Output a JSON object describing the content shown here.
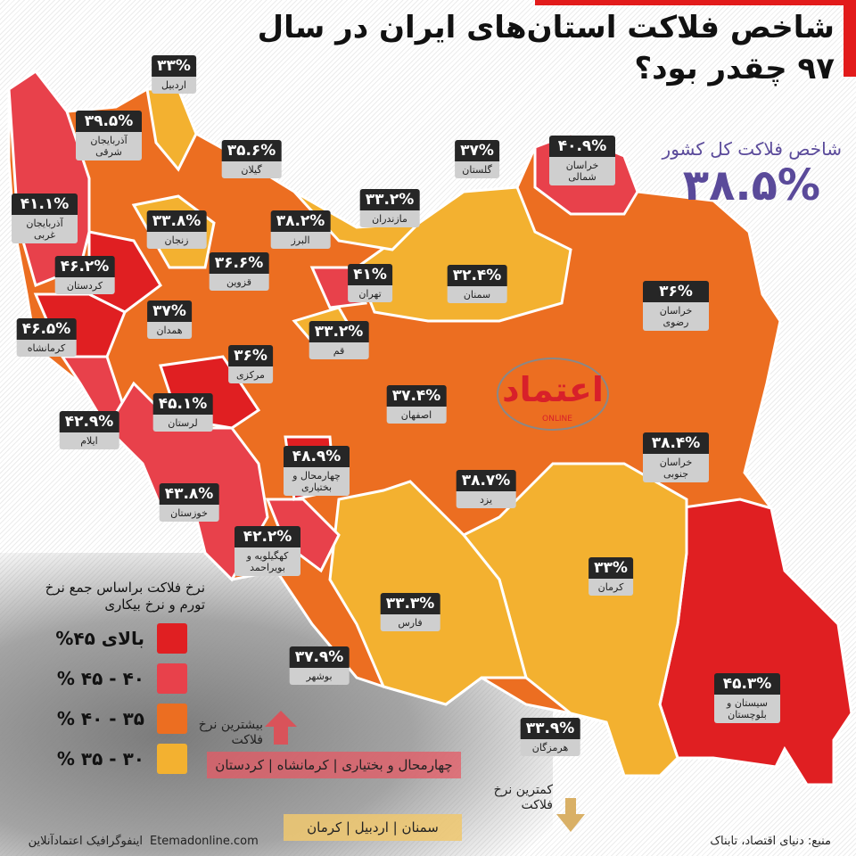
{
  "header": {
    "title": "شاخص فلاکت استان‌های ایران در سال ۹۷ چقدر بود؟"
  },
  "national": {
    "label": "شاخص فلاکت کل کشور",
    "value": "۳۸.۵%"
  },
  "colors": {
    "above45": "#e01f22",
    "40to45": "#e8414b",
    "35to40": "#ec6e21",
    "30to35": "#f3b130",
    "accent": "#5a4a9a"
  },
  "provinces": [
    {
      "name": "اردبیل",
      "value": "۳۳%",
      "cat": "30to35"
    },
    {
      "name": "آذربایجان شرقی",
      "value": "۳۹.۵%",
      "cat": "35to40"
    },
    {
      "name": "گیلان",
      "value": "۳۵.۶%",
      "cat": "35to40"
    },
    {
      "name": "گلستان",
      "value": "۳۷%",
      "cat": "35to40"
    },
    {
      "name": "خراسان شمالی",
      "value": "۴۰.۹%",
      "cat": "40to45"
    },
    {
      "name": "آذربایجان غربی",
      "value": "۴۱.۱%",
      "cat": "40to45"
    },
    {
      "name": "زنجان",
      "value": "۳۳.۸%",
      "cat": "30to35"
    },
    {
      "name": "البرز",
      "value": "۳۸.۲%",
      "cat": "35to40"
    },
    {
      "name": "مازندران",
      "value": "۳۳.۲%",
      "cat": "30to35"
    },
    {
      "name": "کردستان",
      "value": "۴۶.۲%",
      "cat": "above45"
    },
    {
      "name": "قزوین",
      "value": "۳۶.۶%",
      "cat": "35to40"
    },
    {
      "name": "تهران",
      "value": "۴۱%",
      "cat": "40to45"
    },
    {
      "name": "سمنان",
      "value": "۳۲.۴%",
      "cat": "30to35"
    },
    {
      "name": "خراسان رضوی",
      "value": "۳۶%",
      "cat": "35to40"
    },
    {
      "name": "همدان",
      "value": "۳۷%",
      "cat": "35to40"
    },
    {
      "name": "کرمانشاه",
      "value": "۴۶.۵%",
      "cat": "above45"
    },
    {
      "name": "قم",
      "value": "۳۳.۲%",
      "cat": "30to35"
    },
    {
      "name": "مرکزی",
      "value": "۳۶%",
      "cat": "35to40"
    },
    {
      "name": "اصفهان",
      "value": "۳۷.۴%",
      "cat": "35to40"
    },
    {
      "name": "لرستان",
      "value": "۴۵.۱%",
      "cat": "above45"
    },
    {
      "name": "ایلام",
      "value": "۴۲.۹%",
      "cat": "40to45"
    },
    {
      "name": "خراسان جنوبی",
      "value": "۳۸.۴%",
      "cat": "35to40"
    },
    {
      "name": "چهارمحال و بختیاری",
      "value": "۴۸.۹%",
      "cat": "above45"
    },
    {
      "name": "یزد",
      "value": "۳۸.۷%",
      "cat": "35to40"
    },
    {
      "name": "خوزستان",
      "value": "۴۳.۸%",
      "cat": "40to45"
    },
    {
      "name": "کهگیلویه و بویراحمد",
      "value": "۴۲.۲%",
      "cat": "40to45"
    },
    {
      "name": "کرمان",
      "value": "۳۳%",
      "cat": "30to35"
    },
    {
      "name": "فارس",
      "value": "۳۳.۳%",
      "cat": "30to35"
    },
    {
      "name": "بوشهر",
      "value": "۳۷.۹%",
      "cat": "35to40"
    },
    {
      "name": "سیستان و بلوچستان",
      "value": "۴۵.۳%",
      "cat": "above45"
    },
    {
      "name": "هرمزگان",
      "value": "۳۳.۹%",
      "cat": "30to35"
    }
  ],
  "legend": {
    "title": "نرخ فلاکت براساس جمع نرخ تورم و نرخ بیکاری",
    "items": [
      {
        "label": "بالای ۴۵%",
        "cat": "above45"
      },
      {
        "label": "۴۰ - ۴۵ %",
        "cat": "40to45"
      },
      {
        "label": "۳۵ - ۴۰ %",
        "cat": "35to40"
      },
      {
        "label": "۳۰ - ۳۵ %",
        "cat": "30to35"
      }
    ]
  },
  "highest": {
    "label": "بیشترین نرخ فلاکت",
    "provinces": "چهارمحال و بختیاری | کرمانشاه | کردستان"
  },
  "lowest": {
    "label": "کمترین نرخ فلاکت",
    "provinces": "سمنان | اردبیل | کرمان"
  },
  "logo": {
    "text": "اعتماد",
    "sub": "ONLINE"
  },
  "footer": {
    "credit": "اینفوگرافیک اعتمادآنلاین",
    "site": "Etemadonline.com",
    "source": "منبع: دنیای اقتصاد، تابناک"
  }
}
